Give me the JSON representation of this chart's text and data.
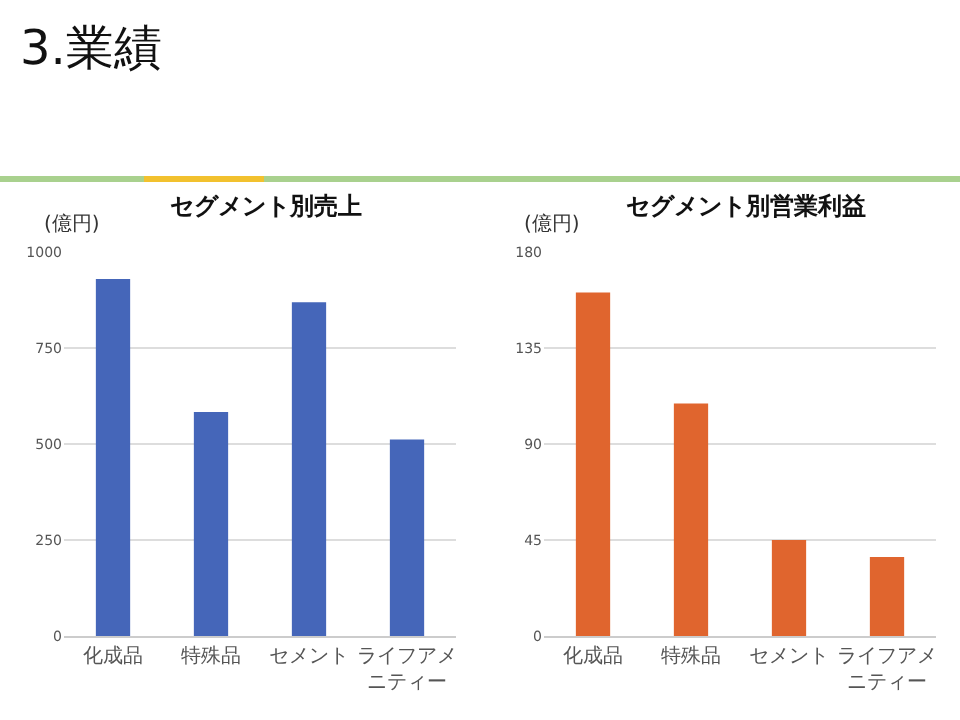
{
  "chart_data": [
    {
      "type": "bar",
      "title": "セグメント別売上",
      "ylabel": "(億円)",
      "annotations": [
        "3.業績"
      ],
      "categories": [
        "化成品",
        "特殊品",
        "セメント",
        "ライフアメニティー"
      ],
      "series": [
        {
          "color": "#4566b9",
          "values": [
            930,
            583,
            869,
            512
          ]
        }
      ],
      "ylim": [
        0,
        1000
      ],
      "yticks": [
        0,
        250,
        500,
        750,
        1000
      ],
      "grid": "y"
    },
    {
      "type": "bar",
      "title": "セグメント別営業利益",
      "ylabel": "(億円)",
      "categories": [
        "化成品",
        "特殊品",
        "セメント",
        "ライフアメニティー"
      ],
      "series": [
        {
          "color": "#e0652e",
          "values": [
            161,
            109,
            45,
            37
          ]
        }
      ],
      "ylim": [
        0,
        180
      ],
      "yticks": [
        0,
        45,
        90,
        135,
        180
      ],
      "grid": "y"
    }
  ]
}
